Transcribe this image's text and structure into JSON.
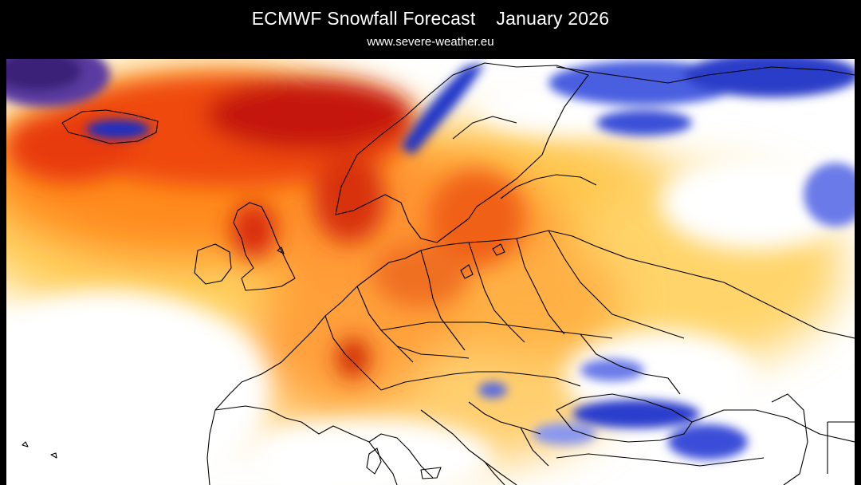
{
  "header": {
    "model": "ECMWF Snowfall Forecast",
    "period": "January 2026",
    "source": "www.severe-weather.eu"
  },
  "map": {
    "region": "Europe",
    "variable": "snowfall anomaly",
    "colors": {
      "strong_deficit": "#b40000",
      "deficit": "#ff6a00",
      "mild_deficit": "#ffc040",
      "neutral": "#ffffff",
      "surplus": "#3a4fd8",
      "strong_surplus": "#0f1fa8",
      "extreme_surplus": "#4b2a86",
      "border": "#000000"
    }
  }
}
